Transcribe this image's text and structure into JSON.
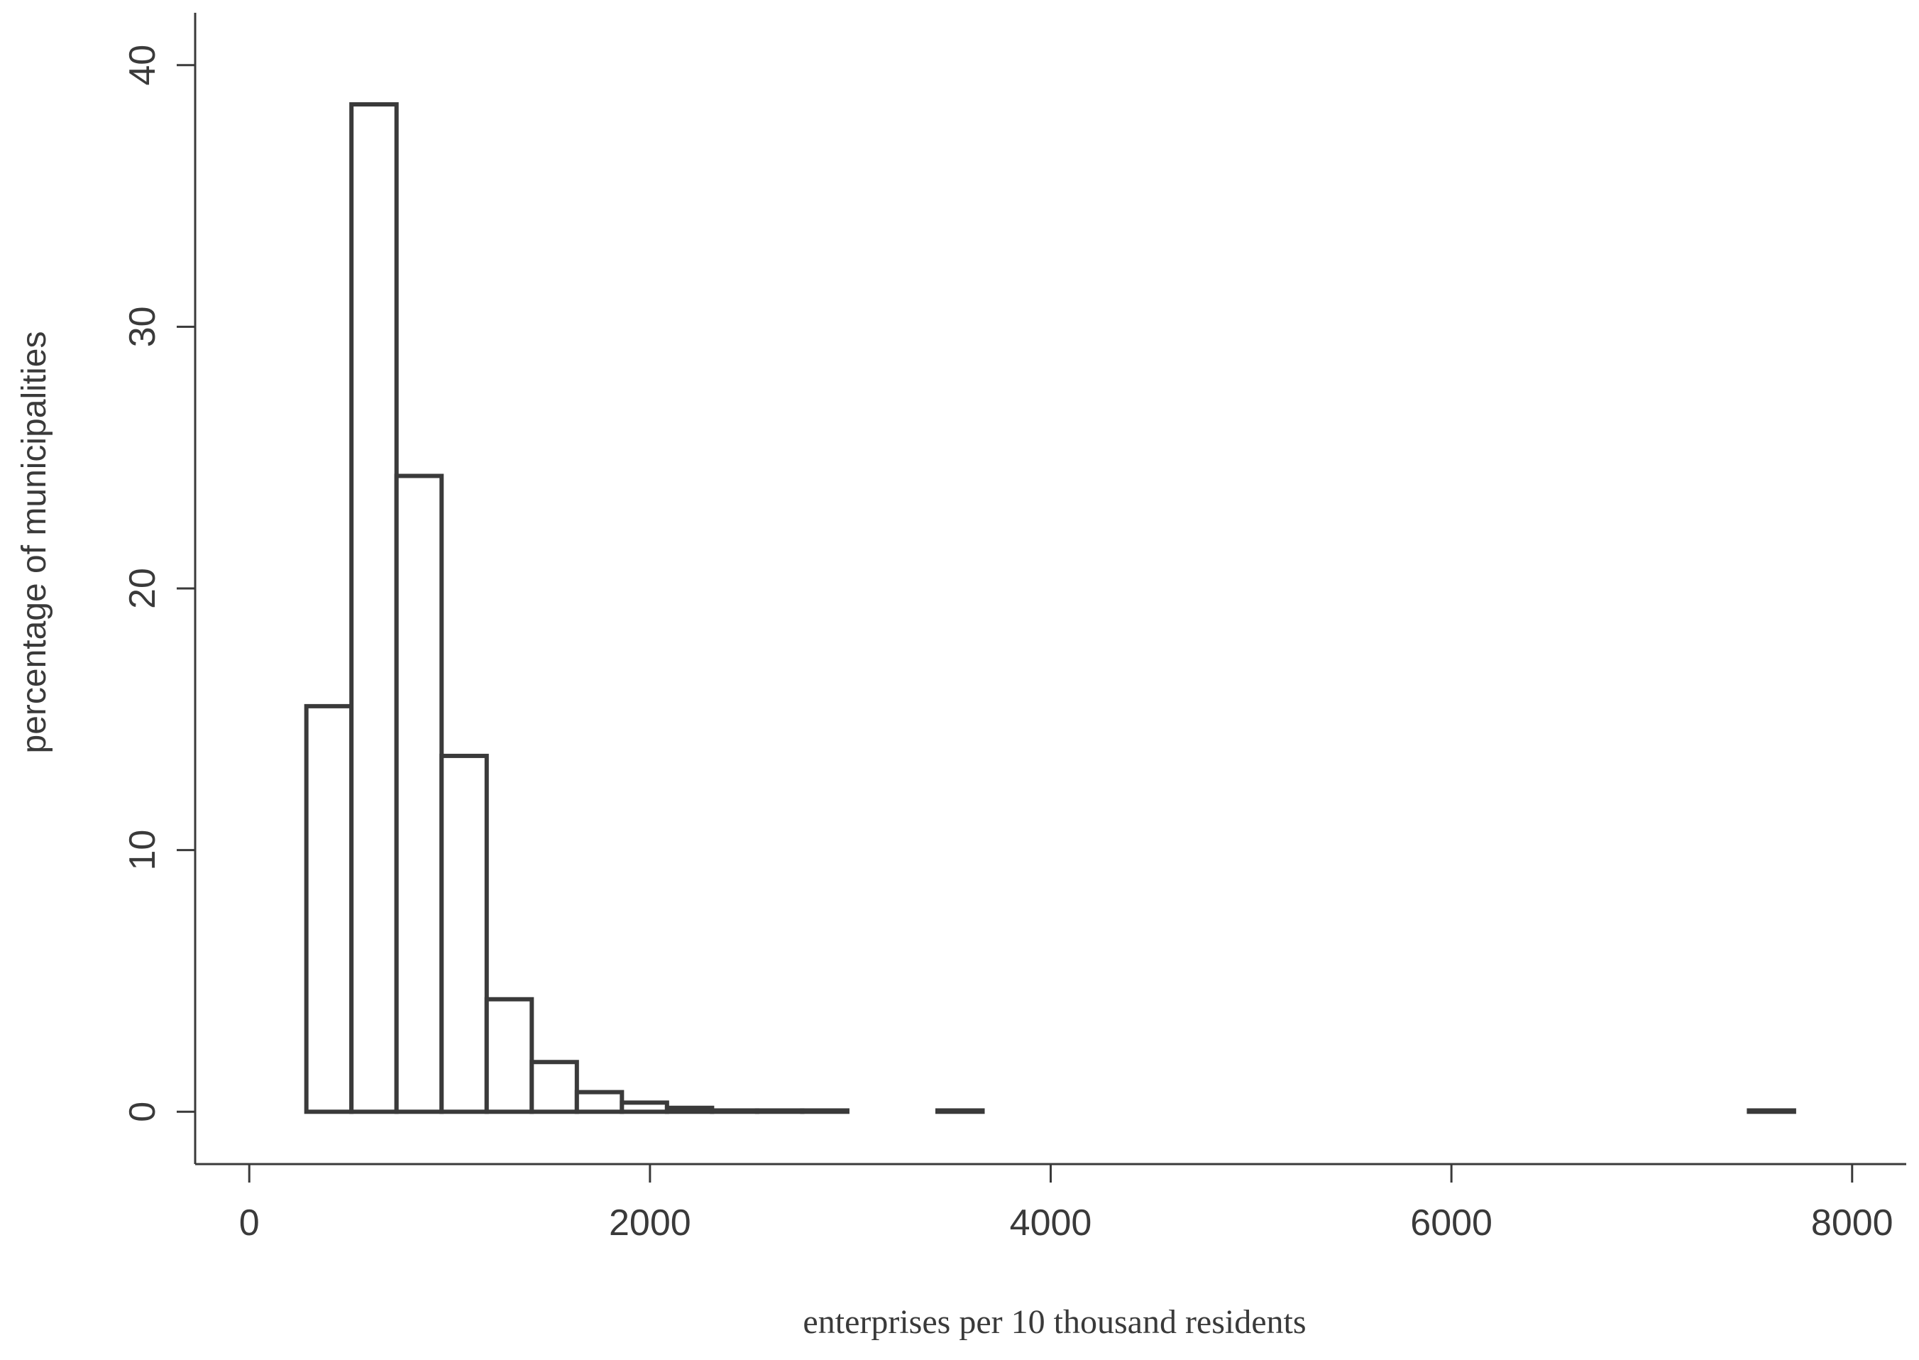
{
  "chart_data": {
    "type": "bar",
    "title": "",
    "xlabel": "enterprises per 10 thousand residents",
    "ylabel": "percentage of municipalities",
    "xlim": [
      -270,
      8270
    ],
    "ylim": [
      -2,
      42
    ],
    "x_ticks": [
      0,
      2000,
      4000,
      6000,
      8000
    ],
    "x_tick_labels": [
      "0",
      "2000",
      "4000",
      "6000",
      "8000"
    ],
    "y_ticks": [
      0,
      10,
      20,
      30,
      40
    ],
    "y_tick_labels": [
      "0",
      "10",
      "20",
      "30",
      "40"
    ],
    "grid": false,
    "legend": "none",
    "bin_width": 225,
    "bins": [
      {
        "x0": 285,
        "x1": 510,
        "value": 15.5
      },
      {
        "x0": 510,
        "x1": 735,
        "value": 38.5
      },
      {
        "x0": 735,
        "x1": 960,
        "value": 24.3
      },
      {
        "x0": 960,
        "x1": 1185,
        "value": 13.6
      },
      {
        "x0": 1185,
        "x1": 1410,
        "value": 4.3
      },
      {
        "x0": 1410,
        "x1": 1635,
        "value": 1.9
      },
      {
        "x0": 1635,
        "x1": 1860,
        "value": 0.75
      },
      {
        "x0": 1860,
        "x1": 2085,
        "value": 0.35
      },
      {
        "x0": 2085,
        "x1": 2310,
        "value": 0.15
      },
      {
        "x0": 2310,
        "x1": 2535,
        "value": 0.05
      },
      {
        "x0": 2535,
        "x1": 2760,
        "value": 0.05
      },
      {
        "x0": 2760,
        "x1": 2985,
        "value": 0.05
      },
      {
        "x0": 3435,
        "x1": 3660,
        "value": 0.05
      },
      {
        "x0": 7485,
        "x1": 7710,
        "value": 0.05
      }
    ]
  },
  "colors": {
    "stroke": "#3a3a3a",
    "bar_fill": "#ffffff",
    "background": "#ffffff"
  }
}
